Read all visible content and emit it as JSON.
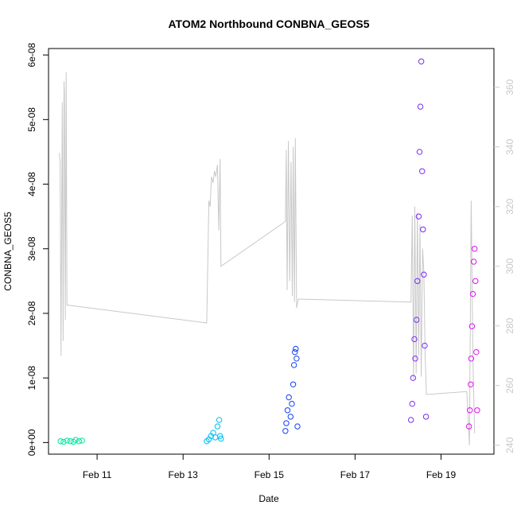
{
  "chart_data": {
    "type": "scatter",
    "title": "ATOM2 Northbound CONBNA_GEOS5",
    "xlabel": "Date",
    "ylabel": "CONBNA_GEOS5",
    "x_ticks": [
      "Feb 11",
      "Feb 13",
      "Feb 15",
      "Feb 17",
      "Feb 19"
    ],
    "x_tick_values": [
      11,
      13,
      15,
      17,
      19
    ],
    "xlim": [
      9.87,
      20.23
    ],
    "y_ticks": [
      "0e+00",
      "1e-08",
      "2e-08",
      "3e-08",
      "4e-08",
      "5e-08",
      "6e-08"
    ],
    "y_tick_values": [
      0,
      1e-08,
      2e-08,
      3e-08,
      4e-08,
      5e-08,
      6e-08
    ],
    "ylim": [
      -1.8e-09,
      6.1e-08
    ],
    "y2_ticks": [
      "240",
      "260",
      "280",
      "300",
      "320",
      "340",
      "360"
    ],
    "y2_tick_values": [
      240,
      260,
      280,
      300,
      320,
      340,
      360
    ],
    "y2lim": [
      237,
      373
    ],
    "y2_axis_color": "#c8c8c8",
    "grid": false,
    "series": [
      {
        "color": "#00E5A0",
        "points": [
          [
            10.15,
            2e-10
          ],
          [
            10.22,
            1e-10
          ],
          [
            10.3,
            3e-10
          ],
          [
            10.38,
            2e-10
          ],
          [
            10.45,
            1e-10
          ],
          [
            10.5,
            4e-10
          ],
          [
            10.58,
            2e-10
          ],
          [
            10.65,
            3e-10
          ]
        ]
      },
      {
        "color": "#00BFF0",
        "points": [
          [
            13.55,
            2e-10
          ],
          [
            13.6,
            5e-10
          ],
          [
            13.65,
            1e-09
          ],
          [
            13.7,
            1.5e-09
          ],
          [
            13.75,
            8e-10
          ],
          [
            13.8,
            2.5e-09
          ],
          [
            13.84,
            3.5e-09
          ],
          [
            13.86,
            1e-09
          ],
          [
            13.88,
            6e-10
          ]
        ]
      },
      {
        "color": "#1040F0",
        "points": [
          [
            15.38,
            1.8e-09
          ],
          [
            15.4,
            3e-09
          ],
          [
            15.43,
            5e-09
          ],
          [
            15.46,
            7e-09
          ],
          [
            15.5,
            4e-09
          ],
          [
            15.53,
            6e-09
          ],
          [
            15.56,
            9e-09
          ],
          [
            15.58,
            1.2e-08
          ],
          [
            15.6,
            1.4e-08
          ],
          [
            15.62,
            1.45e-08
          ],
          [
            15.64,
            1.3e-08
          ],
          [
            15.66,
            2.5e-09
          ]
        ]
      },
      {
        "color": "#7A2BF0",
        "points": [
          [
            18.3,
            3.5e-09
          ],
          [
            18.33,
            6e-09
          ],
          [
            18.35,
            1e-08
          ],
          [
            18.38,
            1.6e-08
          ],
          [
            18.4,
            1.3e-08
          ],
          [
            18.43,
            1.9e-08
          ],
          [
            18.45,
            2.5e-08
          ],
          [
            18.48,
            3.5e-08
          ],
          [
            18.5,
            4.5e-08
          ],
          [
            18.52,
            5.2e-08
          ],
          [
            18.54,
            5.9e-08
          ],
          [
            18.56,
            4.2e-08
          ],
          [
            18.58,
            3.3e-08
          ],
          [
            18.6,
            2.6e-08
          ],
          [
            18.62,
            1.5e-08
          ],
          [
            18.65,
            4e-09
          ]
        ]
      },
      {
        "color": "#E010F0",
        "points": [
          [
            19.65,
            2.5e-09
          ],
          [
            19.67,
            5e-09
          ],
          [
            19.69,
            9e-09
          ],
          [
            19.7,
            1.3e-08
          ],
          [
            19.72,
            1.8e-08
          ],
          [
            19.74,
            2.3e-08
          ],
          [
            19.76,
            2.8e-08
          ],
          [
            19.78,
            3e-08
          ],
          [
            19.8,
            2.5e-08
          ],
          [
            19.82,
            1.4e-08
          ],
          [
            19.84,
            5e-09
          ]
        ]
      }
    ],
    "line_series": {
      "color": "#c8c8c8",
      "axis": "right",
      "points": [
        [
          10.12,
          338
        ],
        [
          10.14,
          335
        ],
        [
          10.16,
          270
        ],
        [
          10.19,
          355
        ],
        [
          10.21,
          275
        ],
        [
          10.23,
          362
        ],
        [
          10.24,
          358
        ],
        [
          10.26,
          282
        ],
        [
          10.28,
          365
        ],
        [
          10.3,
          287
        ],
        [
          13.55,
          281
        ],
        [
          13.6,
          322
        ],
        [
          13.63,
          320
        ],
        [
          13.66,
          330
        ],
        [
          13.7,
          328
        ],
        [
          13.73,
          332
        ],
        [
          13.76,
          330
        ],
        [
          13.8,
          334
        ],
        [
          13.83,
          312
        ],
        [
          13.86,
          336
        ],
        [
          13.88,
          300
        ],
        [
          15.38,
          315
        ],
        [
          15.4,
          339
        ],
        [
          15.42,
          292
        ],
        [
          15.45,
          342
        ],
        [
          15.48,
          295
        ],
        [
          15.51,
          335
        ],
        [
          15.54,
          290
        ],
        [
          15.56,
          340
        ],
        [
          15.59,
          288
        ],
        [
          15.61,
          343
        ],
        [
          15.64,
          286
        ],
        [
          15.68,
          289
        ],
        [
          18.3,
          288
        ],
        [
          18.33,
          317
        ],
        [
          18.36,
          262
        ],
        [
          18.39,
          320
        ],
        [
          18.42,
          264
        ],
        [
          18.45,
          318
        ],
        [
          18.48,
          270
        ],
        [
          18.51,
          314
        ],
        [
          18.54,
          263
        ],
        [
          18.57,
          306
        ],
        [
          18.6,
          298
        ],
        [
          18.63,
          270
        ],
        [
          18.66,
          257
        ],
        [
          19.6,
          258
        ],
        [
          19.66,
          240
        ],
        [
          19.7,
          322
        ],
        [
          19.74,
          270
        ],
        [
          19.78,
          244
        ]
      ]
    }
  }
}
